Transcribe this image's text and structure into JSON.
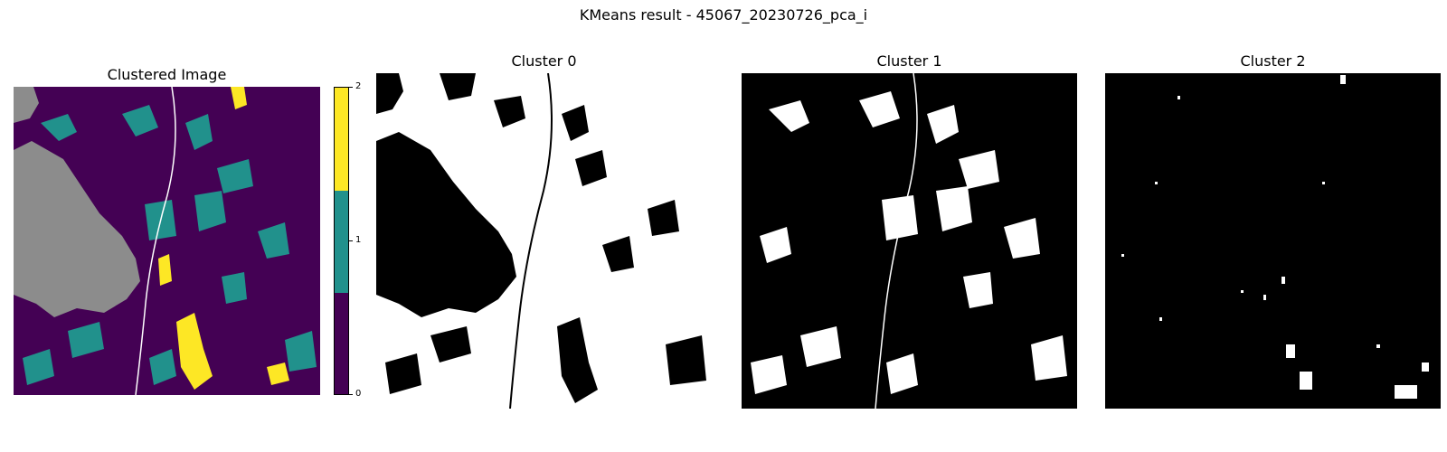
{
  "figure": {
    "suptitle": "KMeans result - 45067_20230726_pca_i"
  },
  "panels": [
    {
      "title": "Clustered Image",
      "kind": "label-map"
    },
    {
      "title": "Cluster 0",
      "kind": "binary-mask"
    },
    {
      "title": "Cluster 1",
      "kind": "binary-mask"
    },
    {
      "title": "Cluster 2",
      "kind": "binary-mask"
    }
  ],
  "colorbar": {
    "ticks": [
      "0",
      "1",
      "2"
    ],
    "colors": [
      "#440154",
      "#21918c",
      "#fde725"
    ],
    "nodata_color": "#8c8c8c"
  }
}
